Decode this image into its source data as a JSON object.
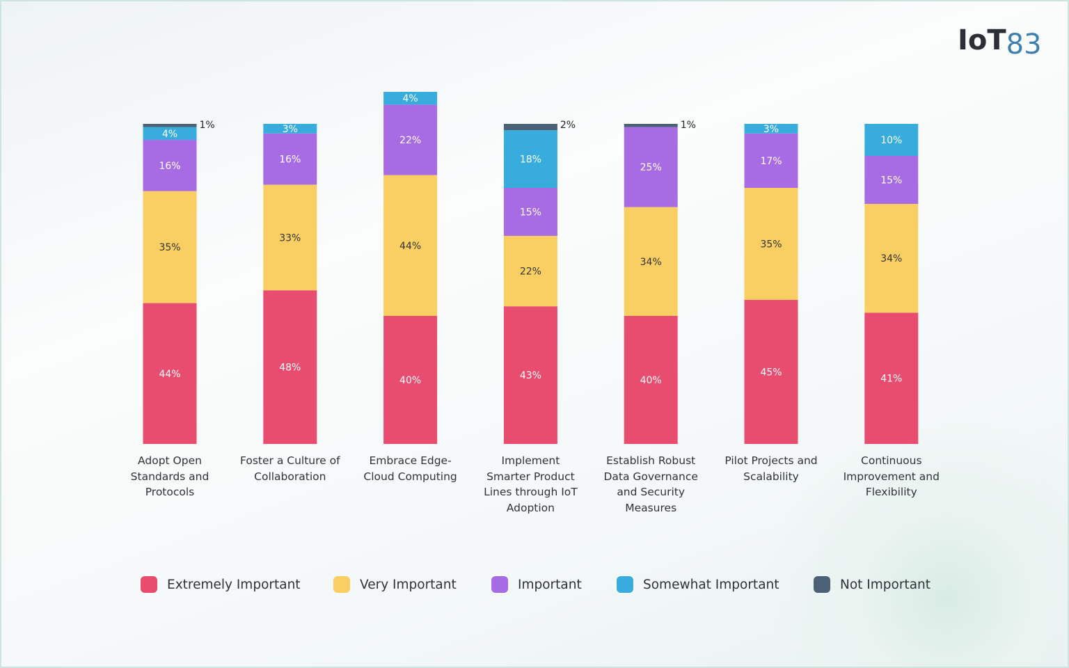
{
  "logo": {
    "main": "IoT",
    "accent": "83"
  },
  "chart_data": {
    "type": "stacked-bar",
    "categories": [
      "Adopt Open Standards and Protocols",
      "Foster a Culture of Collaboration",
      "Embrace Edge-Cloud Computing",
      "Implement Smarter Product Lines through IoT Adoption",
      "Establish Robust Data Governance and Security Measures",
      "Pilot Projects and Scalability",
      "Continuous Improvement and Flexibility"
    ],
    "series": [
      {
        "name": "Extremely Important",
        "color": "#e84d6f",
        "values": [
          44,
          48,
          40,
          43,
          40,
          45,
          41
        ],
        "value_labels": [
          "44%",
          "48%",
          "40%",
          "43%",
          "40%",
          "45%",
          "41%"
        ]
      },
      {
        "name": "Very Important",
        "color": "#f9cf63",
        "values": [
          35,
          33,
          44,
          22,
          34,
          35,
          34
        ],
        "value_labels": [
          "35%",
          "33%",
          "44%",
          "22%",
          "34%",
          "35%",
          "34%"
        ]
      },
      {
        "name": "Important",
        "color": "#a76ce4",
        "values": [
          16,
          16,
          22,
          15,
          25,
          17,
          15
        ],
        "value_labels": [
          "16%",
          "16%",
          "22%",
          "15%",
          "25%",
          "17%",
          "15%"
        ]
      },
      {
        "name": "Somewhat Important",
        "color": "#38acdc",
        "values": [
          4,
          3,
          4,
          18,
          null,
          3,
          10
        ],
        "value_labels": [
          "4%",
          "3%",
          "4%",
          "18%",
          null,
          "3%",
          "10%"
        ]
      },
      {
        "name": "Not Important",
        "color": "#4b6175",
        "values": [
          1,
          null,
          null,
          2,
          1,
          null,
          null
        ],
        "value_labels": [
          "1%",
          null,
          null,
          "2%",
          "1%",
          null,
          null
        ]
      }
    ]
  }
}
